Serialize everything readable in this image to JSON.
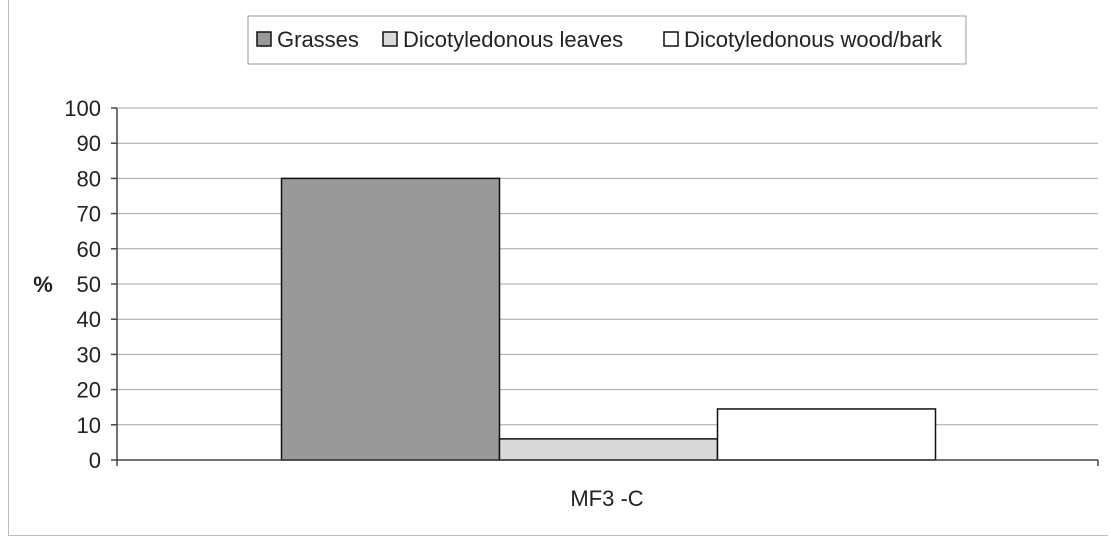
{
  "chart_data": {
    "type": "bar",
    "title": "",
    "xlabel": "",
    "ylabel": "%",
    "categories": [
      "MF3 -C"
    ],
    "ylim": [
      0,
      100
    ],
    "yticks": [
      0,
      10,
      20,
      30,
      40,
      50,
      60,
      70,
      80,
      90,
      100
    ],
    "grid": true,
    "legend_position": "top",
    "series": [
      {
        "name": "Grasses",
        "values": [
          80
        ],
        "color": "#999999"
      },
      {
        "name": "Dicotyledonous leaves",
        "values": [
          6
        ],
        "color": "#d9d9d9"
      },
      {
        "name": "Dicotyledonous wood/bark",
        "values": [
          14.5
        ],
        "color": "#ffffff"
      }
    ]
  }
}
